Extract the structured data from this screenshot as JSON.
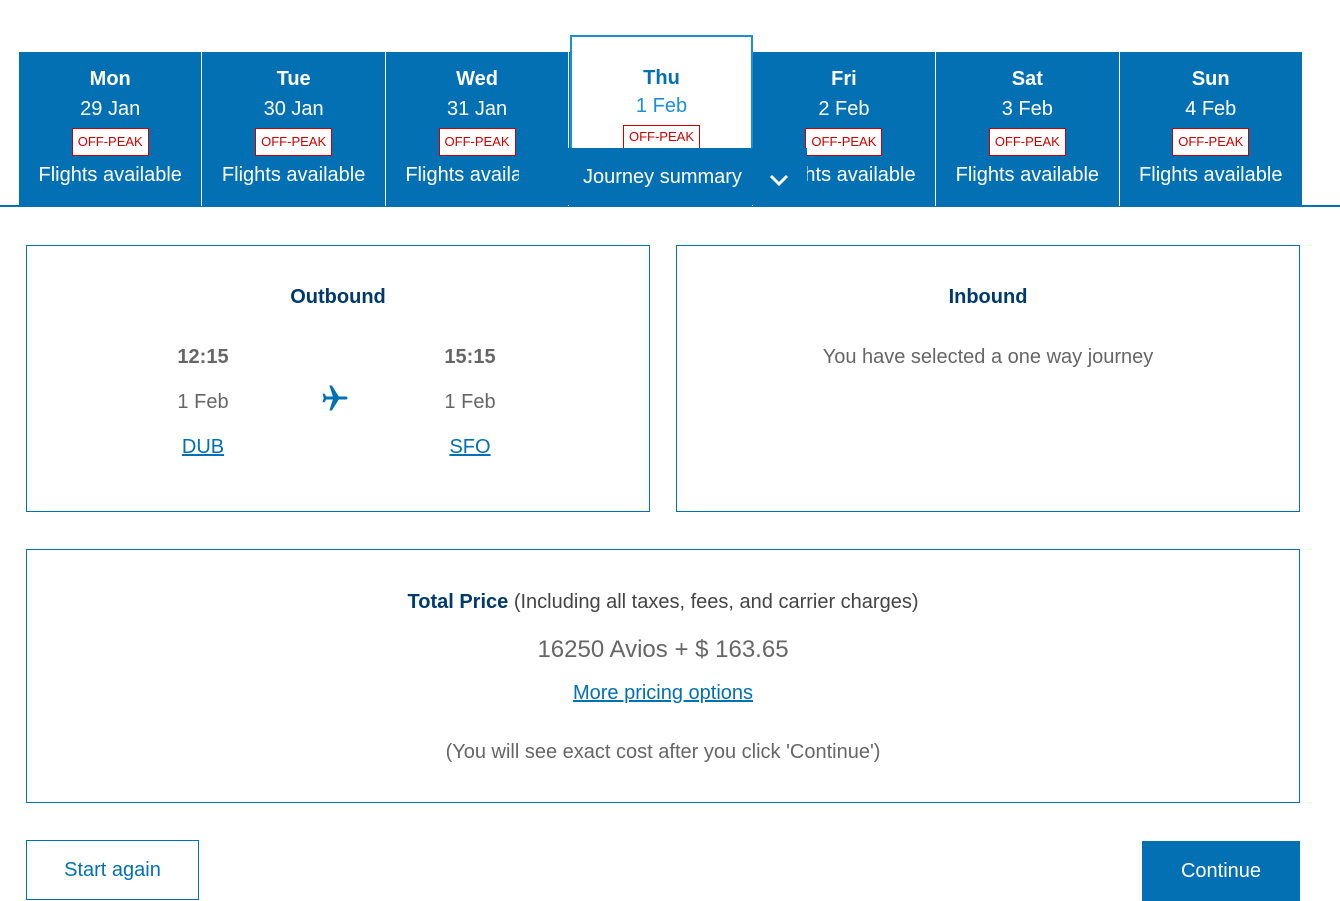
{
  "date_tabs": [
    {
      "day": "Mon",
      "date": "29 Jan",
      "badge": "OFF-PEAK",
      "status": "Flights available"
    },
    {
      "day": "Tue",
      "date": "30 Jan",
      "badge": "OFF-PEAK",
      "status": "Flights available"
    },
    {
      "day": "Wed",
      "date": "31 Jan",
      "badge": "OFF-PEAK",
      "status": "Flights available"
    },
    {
      "day": "Thu",
      "date": "1 Feb",
      "badge": "OFF-PEAK",
      "status": ""
    },
    {
      "day": "Fri",
      "date": "2 Feb",
      "badge": "OFF-PEAK",
      "status": "Flights available"
    },
    {
      "day": "Sat",
      "date": "3 Feb",
      "badge": "OFF-PEAK",
      "status": "Flights available"
    },
    {
      "day": "Sun",
      "date": "4 Feb",
      "badge": "OFF-PEAK",
      "status": "Flights available"
    }
  ],
  "journey_summary": "Journey summary",
  "outbound": {
    "title": "Outbound",
    "depart_time": "12:15",
    "depart_date": "1 Feb",
    "depart_code": "DUB",
    "arrive_time": "15:15",
    "arrive_date": "1 Feb",
    "arrive_code": "SFO"
  },
  "inbound": {
    "title": "Inbound",
    "message": "You have selected a one way journey"
  },
  "price": {
    "label": "Total Price",
    "note": "(Including all taxes, fees, and carrier charges)",
    "amount": "16250 Avios + $ 163.65",
    "more": "More pricing options",
    "footnote": "(You will see exact cost after you click 'Continue')"
  },
  "buttons": {
    "start_again": "Start again",
    "continue": "Continue"
  },
  "colors": {
    "brand": "#0270b2",
    "badge": "#cc0000"
  }
}
